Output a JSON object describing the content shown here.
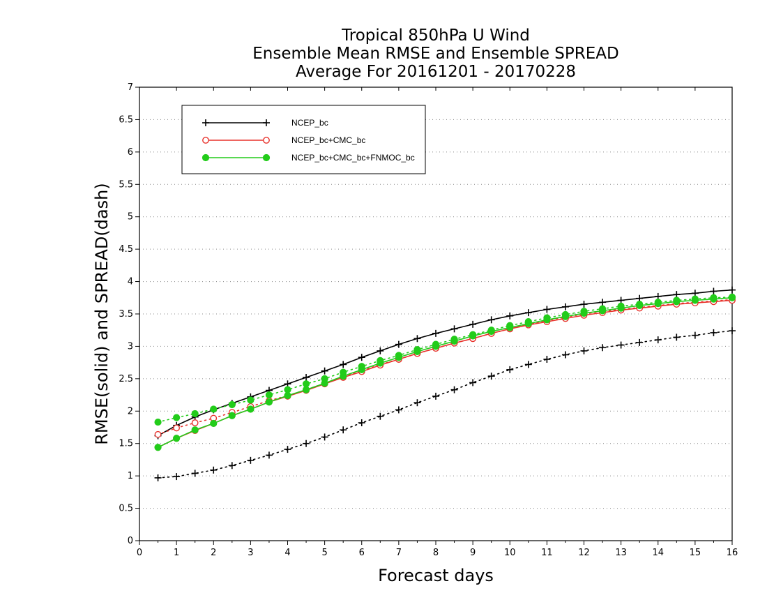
{
  "chart_data": {
    "type": "line",
    "title_lines": [
      "Tropical 850hPa U Wind",
      "Ensemble Mean RMSE and Ensemble SPREAD",
      "Average For 20161201 - 20170228"
    ],
    "xlabel": "Forecast days",
    "ylabel": "RMSE(solid) and SPREAD(dash)",
    "xlim": [
      0,
      16
    ],
    "ylim": [
      0,
      7
    ],
    "xticks": [
      "0",
      "1",
      "2",
      "3",
      "4",
      "5",
      "6",
      "7",
      "8",
      "9",
      "10",
      "11",
      "12",
      "13",
      "14",
      "15",
      "16"
    ],
    "yticks": [
      "0",
      "0.5",
      "1",
      "1.5",
      "2",
      "2.5",
      "3",
      "3.5",
      "4",
      "4.5",
      "5",
      "5.5",
      "6",
      "6.5",
      "7"
    ],
    "grid": "horizontal-dotted",
    "legend_position": "top-left",
    "x": [
      0.5,
      1,
      1.5,
      2,
      2.5,
      3,
      3.5,
      4,
      4.5,
      5,
      5.5,
      6,
      6.5,
      7,
      7.5,
      8,
      8.5,
      9,
      9.5,
      10,
      10.5,
      11,
      11.5,
      12,
      12.5,
      13,
      13.5,
      14,
      14.5,
      15,
      15.5,
      16
    ],
    "series": [
      {
        "name": "NCEP_bc",
        "color": "#000000",
        "marker": "plus",
        "rmse": [
          1.62,
          1.78,
          1.91,
          2.02,
          2.12,
          2.22,
          2.32,
          2.42,
          2.52,
          2.62,
          2.72,
          2.83,
          2.93,
          3.03,
          3.12,
          3.2,
          3.27,
          3.34,
          3.41,
          3.47,
          3.52,
          3.57,
          3.61,
          3.65,
          3.68,
          3.71,
          3.74,
          3.77,
          3.8,
          3.82,
          3.85,
          3.87
        ],
        "spread": [
          0.97,
          0.99,
          1.04,
          1.09,
          1.16,
          1.24,
          1.32,
          1.41,
          1.5,
          1.6,
          1.71,
          1.82,
          1.92,
          2.02,
          2.13,
          2.23,
          2.33,
          2.44,
          2.54,
          2.64,
          2.72,
          2.8,
          2.87,
          2.93,
          2.98,
          3.02,
          3.06,
          3.1,
          3.14,
          3.17,
          3.21,
          3.24
        ]
      },
      {
        "name": "NCEP_bc+CMC_bc",
        "color": "#e8322c",
        "marker": "open-circle",
        "rmse": [
          1.44,
          1.58,
          1.7,
          1.81,
          1.93,
          2.03,
          2.14,
          2.23,
          2.32,
          2.42,
          2.52,
          2.61,
          2.71,
          2.8,
          2.89,
          2.97,
          3.05,
          3.12,
          3.2,
          3.27,
          3.33,
          3.38,
          3.43,
          3.48,
          3.52,
          3.56,
          3.59,
          3.62,
          3.65,
          3.67,
          3.69,
          3.71
        ],
        "spread": [
          1.64,
          1.74,
          1.82,
          1.89,
          1.98,
          2.07,
          2.16,
          2.24,
          2.33,
          2.43,
          2.53,
          2.62,
          2.72,
          2.8,
          2.89,
          2.97,
          3.05,
          3.12,
          3.2,
          3.27,
          3.34,
          3.4,
          3.45,
          3.5,
          3.54,
          3.57,
          3.6,
          3.63,
          3.66,
          3.68,
          3.7,
          3.72
        ]
      },
      {
        "name": "NCEP_bc+CMC_bc+FNMOC_bc",
        "color": "#22cc1a",
        "marker": "filled-circle",
        "rmse": [
          1.44,
          1.58,
          1.71,
          1.81,
          1.93,
          2.03,
          2.14,
          2.24,
          2.33,
          2.43,
          2.54,
          2.64,
          2.74,
          2.83,
          2.92,
          3.0,
          3.08,
          3.16,
          3.23,
          3.29,
          3.35,
          3.41,
          3.46,
          3.51,
          3.55,
          3.59,
          3.63,
          3.66,
          3.69,
          3.71,
          3.73,
          3.75
        ],
        "spread": [
          1.83,
          1.9,
          1.96,
          2.03,
          2.1,
          2.17,
          2.25,
          2.33,
          2.42,
          2.5,
          2.6,
          2.69,
          2.78,
          2.86,
          2.95,
          3.03,
          3.11,
          3.18,
          3.25,
          3.32,
          3.38,
          3.44,
          3.49,
          3.54,
          3.58,
          3.62,
          3.65,
          3.68,
          3.71,
          3.73,
          3.75,
          3.76
        ]
      }
    ]
  }
}
